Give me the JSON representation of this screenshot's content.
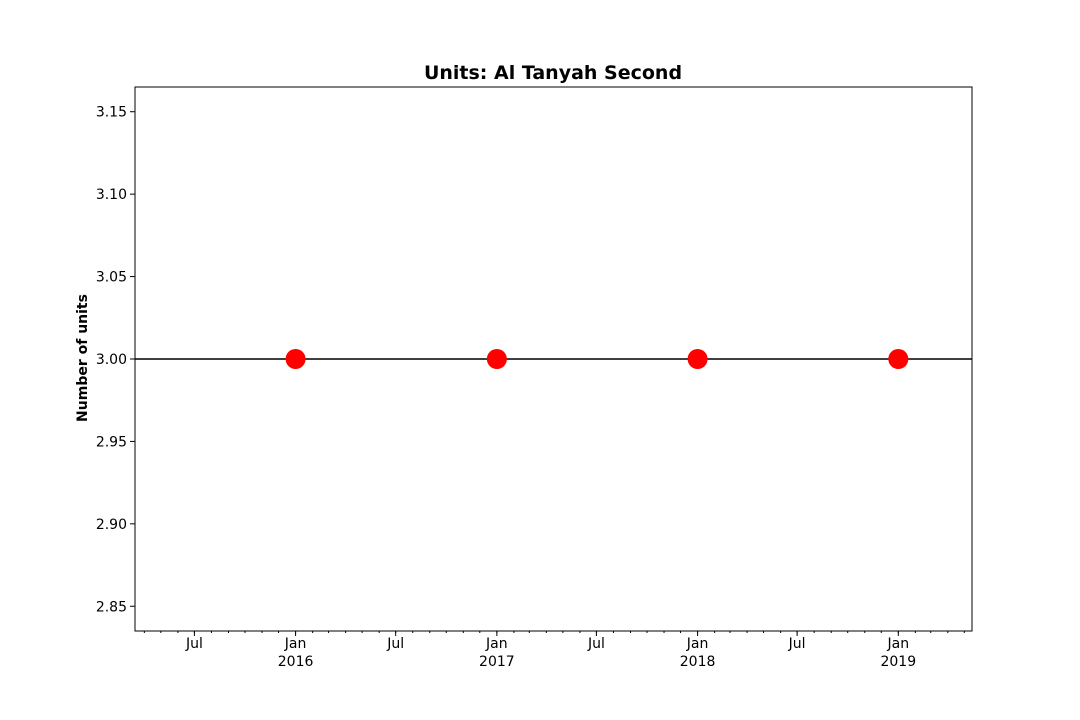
{
  "chart_data": {
    "type": "line",
    "title": "Units: Al Tanyah Second",
    "xlabel": "",
    "ylabel": "Number of units",
    "x_axis": {
      "type": "date",
      "range": [
        "2015-03-15",
        "2019-05-15"
      ],
      "major_ticks": [
        {
          "date": "2015-07-01",
          "label": "Jul",
          "sublabel": ""
        },
        {
          "date": "2016-01-01",
          "label": "Jan",
          "sublabel": "2016"
        },
        {
          "date": "2016-07-01",
          "label": "Jul",
          "sublabel": ""
        },
        {
          "date": "2017-01-01",
          "label": "Jan",
          "sublabel": "2017"
        },
        {
          "date": "2017-07-01",
          "label": "Jul",
          "sublabel": ""
        },
        {
          "date": "2018-01-01",
          "label": "Jan",
          "sublabel": "2018"
        },
        {
          "date": "2018-07-01",
          "label": "Jul",
          "sublabel": ""
        },
        {
          "date": "2019-01-01",
          "label": "Jan",
          "sublabel": "2019"
        }
      ],
      "minor_ticks": "monthly"
    },
    "y_axis": {
      "range": [
        2.835,
        3.165
      ],
      "ticks": [
        2.85,
        2.9,
        2.95,
        3.0,
        3.05,
        3.1,
        3.15
      ],
      "tick_labels": [
        "2.85",
        "2.90",
        "2.95",
        "3.00",
        "3.05",
        "3.10",
        "3.15"
      ]
    },
    "series": [
      {
        "x": [
          "2016-01-01",
          "2017-01-01",
          "2018-01-01",
          "2019-01-01"
        ],
        "y": [
          3,
          3,
          3,
          3
        ],
        "marker": "circle",
        "marker_color": "#ff0000"
      }
    ],
    "reference_line": {
      "y": 3.0,
      "color": "#000000"
    },
    "grid": false,
    "legend": "none"
  }
}
